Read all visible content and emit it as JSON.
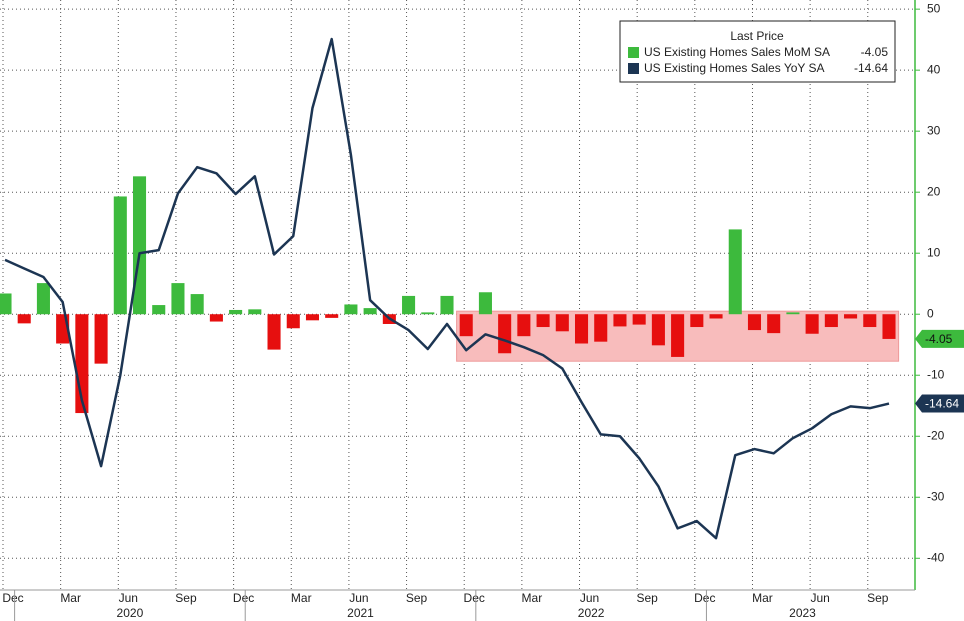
{
  "chart_data": {
    "type": "bar-line",
    "legend_title": "Last Price",
    "categories": [
      "Dec",
      null,
      null,
      "Mar",
      null,
      null,
      "Jun",
      null,
      null,
      "Sep",
      null,
      null,
      "Dec",
      null,
      null,
      "Mar",
      null,
      null,
      "Jun",
      null,
      null,
      "Sep",
      null,
      null,
      "Dec",
      null,
      null,
      "Mar",
      null,
      null,
      "Jun",
      null,
      null,
      "Sep",
      null,
      null,
      "Dec",
      null,
      null,
      "Mar",
      null,
      null,
      "Jun",
      null,
      null,
      "Sep",
      null
    ],
    "year_groups": [
      {
        "label": "2020",
        "from": 1,
        "to": 12
      },
      {
        "label": "2021",
        "from": 13,
        "to": 24
      },
      {
        "label": "2022",
        "from": 25,
        "to": 36
      },
      {
        "label": "2023",
        "from": 37,
        "to": 46
      }
    ],
    "series": [
      {
        "name": "US Existing Homes Sales MoM SA",
        "type": "bar",
        "color": "#3dba3d",
        "negative_color": "#e60f0f",
        "values": [
          3.4,
          -1.5,
          5.1,
          -4.8,
          -16.2,
          -8.1,
          19.3,
          22.6,
          1.5,
          5.1,
          3.3,
          -1.2,
          0.7,
          0.8,
          -5.8,
          -2.3,
          -1.0,
          -0.6,
          1.6,
          1.0,
          -1.6,
          3.0,
          0.3,
          3.0,
          -3.6,
          3.6,
          -6.4,
          -3.6,
          -2.1,
          -2.8,
          -4.8,
          -4.5,
          -2.0,
          -1.7,
          -5.1,
          -7.0,
          -2.1,
          -0.7,
          13.9,
          -2.6,
          -3.1,
          0.3,
          -3.2,
          -2.1,
          -0.7,
          -2.1,
          -4.05
        ]
      },
      {
        "name": "US Existing Homes Sales YoY SA",
        "type": "line",
        "color": "#1c3553",
        "values": [
          8.9,
          7.5,
          6.1,
          2.0,
          -14.1,
          -24.9,
          -10.0,
          10.0,
          10.5,
          19.8,
          24.1,
          23.1,
          19.7,
          22.6,
          9.8,
          12.8,
          33.8,
          45.1,
          26.1,
          2.3,
          -0.7,
          -2.6,
          -5.7,
          -1.6,
          -5.9,
          -3.3,
          -4.3,
          -5.4,
          -6.7,
          -8.9,
          -14.4,
          -19.7,
          -20.0,
          -23.6,
          -28.2,
          -35.1,
          -33.9,
          -36.7,
          -23.1,
          -22.1,
          -22.8,
          -20.3,
          -18.7,
          -16.4,
          -15.1,
          -15.4,
          -14.64
        ]
      }
    ],
    "highlight": {
      "from": 24,
      "to": 46,
      "ylim": [
        -7.7,
        0.5
      ],
      "color": "#f8bcbc"
    },
    "ylim": [
      -45.2,
      51.5
    ],
    "yticks": [
      50,
      40,
      30,
      20,
      10,
      0,
      -10,
      -20,
      -30,
      -40
    ],
    "axis_color": "#3dba3d",
    "grid": true
  }
}
